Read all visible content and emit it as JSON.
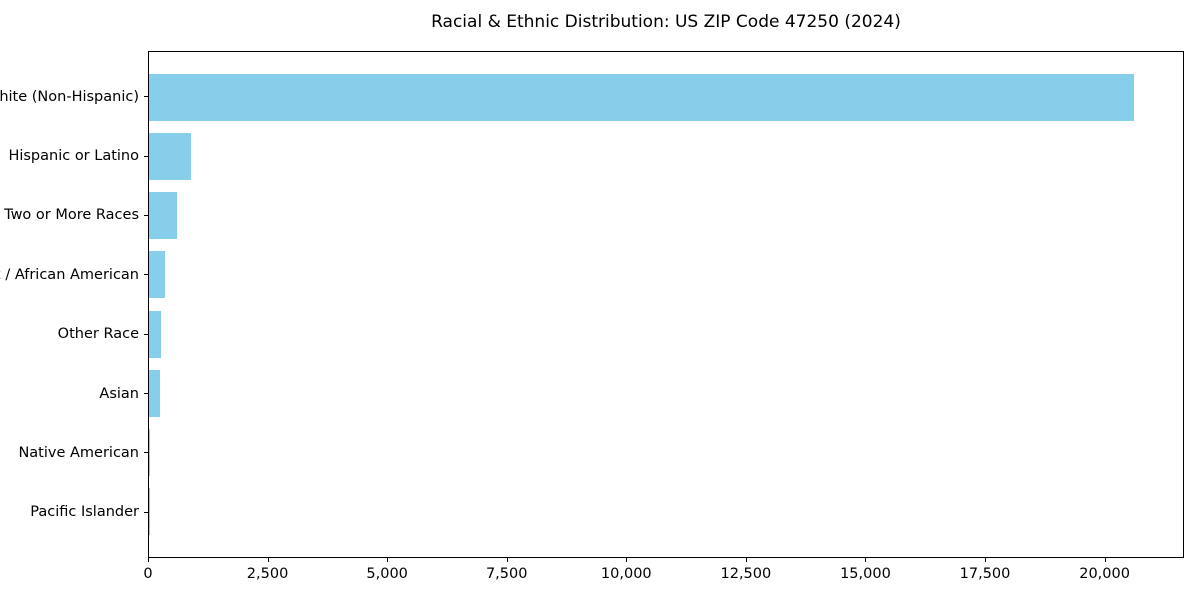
{
  "chart_data": {
    "type": "bar",
    "orientation": "horizontal",
    "title": "Racial & Ethnic Distribution: US ZIP Code 47250 (2024)",
    "categories": [
      "White (Non-Hispanic)",
      "Hispanic or Latino",
      "Two or More Races",
      "Black / African American",
      "Other Race",
      "Asian",
      "Native American",
      "Pacific Islander"
    ],
    "values": [
      20630,
      885,
      580,
      335,
      255,
      225,
      25,
      6
    ],
    "bar_color": "#87CEEB",
    "xlabel": "",
    "ylabel": "",
    "xlim": [
      0,
      21660
    ],
    "xticks": {
      "values": [
        0,
        2500,
        5000,
        7500,
        10000,
        12500,
        15000,
        17500,
        20000
      ],
      "labels": [
        "0",
        "2,500",
        "5,000",
        "7,500",
        "10,000",
        "12,500",
        "15,000",
        "17,500",
        "20,000"
      ]
    },
    "grid": false,
    "legend": null
  }
}
